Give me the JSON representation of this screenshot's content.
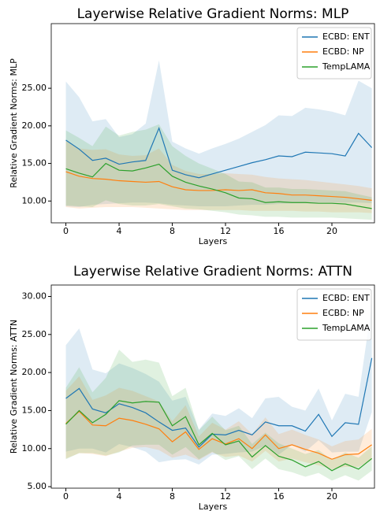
{
  "chart_data": [
    {
      "type": "line",
      "title": "Layerwise Relative Gradient Norms: MLP",
      "x_label": "Layers",
      "y_label": "Relative Gradient Norms: MLP",
      "legend": "upper right",
      "x": [
        0,
        1,
        2,
        3,
        4,
        5,
        6,
        7,
        8,
        9,
        10,
        11,
        12,
        13,
        14,
        15,
        16,
        17,
        18,
        19,
        20,
        21,
        22,
        23
      ],
      "xlim": [
        -1.1,
        23.2
      ],
      "xticks": [
        0,
        4,
        8,
        12,
        16,
        20
      ],
      "ylim": [
        7.1,
        33.6
      ],
      "yticks": [
        {
          "value": 10,
          "label": "10.00"
        },
        {
          "value": 15,
          "label": "15.00"
        },
        {
          "value": 20,
          "label": "20.00"
        },
        {
          "value": 25,
          "label": "25.00"
        }
      ],
      "series": [
        {
          "name": "ECBD: ENT",
          "color": "#1f77b4",
          "values": [
            18.1,
            16.9,
            15.4,
            15.7,
            14.9,
            15.2,
            15.4,
            19.7,
            14.1,
            13.5,
            13.1,
            13.6,
            14.1,
            14.6,
            15.1,
            15.5,
            16.0,
            15.9,
            16.5,
            16.4,
            16.3,
            16.0,
            19.0,
            17.1
          ],
          "upper": [
            25.9,
            23.8,
            20.6,
            20.9,
            18.5,
            18.9,
            20.3,
            28.7,
            17.9,
            17.0,
            16.3,
            17.0,
            17.6,
            18.3,
            19.2,
            20.1,
            21.4,
            21.3,
            22.4,
            22.2,
            21.9,
            21.4,
            26.0,
            25.0
          ],
          "lower": [
            9.3,
            9.2,
            9.5,
            9.6,
            9.7,
            9.8,
            9.8,
            9.7,
            9.5,
            9.4,
            9.3,
            9.3,
            9.3,
            9.4,
            9.5,
            9.5,
            9.6,
            9.7,
            9.7,
            9.8,
            9.8,
            9.8,
            9.8,
            9.7
          ]
        },
        {
          "name": "ECBD: NP",
          "color": "#ff7f0e",
          "values": [
            13.9,
            13.3,
            13.0,
            12.9,
            12.7,
            12.6,
            12.5,
            12.6,
            11.9,
            11.5,
            11.4,
            11.4,
            11.5,
            11.4,
            11.5,
            11.1,
            11.0,
            10.8,
            10.8,
            10.7,
            10.6,
            10.5,
            10.3,
            10.1
          ],
          "upper": [
            18.0,
            17.0,
            16.8,
            16.9,
            16.2,
            16.0,
            16.1,
            17.0,
            14.8,
            14.0,
            13.6,
            13.6,
            13.7,
            13.6,
            13.5,
            13.2,
            13.0,
            12.9,
            12.8,
            12.6,
            12.4,
            12.2,
            12.0,
            11.7
          ],
          "lower": [
            9.2,
            9.0,
            9.1,
            9.2,
            9.2,
            9.2,
            9.1,
            9.0,
            8.9,
            8.8,
            8.8,
            8.8,
            8.8,
            8.8,
            8.7,
            8.7,
            8.7,
            8.7,
            8.6,
            8.6,
            8.5,
            8.5,
            8.5,
            8.4
          ]
        },
        {
          "name": "TempLAMA",
          "color": "#2ca02c",
          "values": [
            14.3,
            13.7,
            13.2,
            15.0,
            14.1,
            14.0,
            14.4,
            14.9,
            13.3,
            12.5,
            12.0,
            11.6,
            11.1,
            10.4,
            10.3,
            9.8,
            9.9,
            9.8,
            9.8,
            9.7,
            9.7,
            9.6,
            9.3,
            9.0
          ],
          "upper": [
            19.4,
            18.4,
            17.3,
            19.9,
            18.7,
            19.2,
            19.5,
            20.2,
            17.3,
            16.0,
            15.0,
            14.3,
            13.6,
            12.6,
            12.5,
            11.8,
            11.8,
            11.6,
            11.6,
            11.5,
            11.4,
            11.3,
            10.9,
            10.5
          ],
          "lower": [
            9.4,
            9.3,
            9.2,
            10.1,
            9.6,
            9.4,
            9.4,
            9.6,
            9.3,
            9.0,
            8.9,
            8.7,
            8.5,
            8.2,
            8.1,
            7.9,
            7.9,
            7.8,
            7.8,
            7.8,
            7.8,
            7.7,
            7.6,
            7.5
          ]
        }
      ]
    },
    {
      "type": "line",
      "title": "Layerwise Relative Gradient Norms: ATTN",
      "x_label": "Layers",
      "y_label": "Relative Gradient Norms: ATTN",
      "legend": "upper right",
      "x": [
        0,
        1,
        2,
        3,
        4,
        5,
        6,
        7,
        8,
        9,
        10,
        11,
        12,
        13,
        14,
        15,
        16,
        17,
        18,
        19,
        20,
        21,
        22,
        23
      ],
      "xlim": [
        -1.1,
        23.2
      ],
      "xticks": [
        0,
        4,
        8,
        12,
        16,
        20
      ],
      "ylim": [
        4.8,
        31.5
      ],
      "yticks": [
        {
          "value": 5,
          "label": "5.00"
        },
        {
          "value": 10,
          "label": "10.00"
        },
        {
          "value": 15,
          "label": "15.00"
        },
        {
          "value": 20,
          "label": "20.00"
        },
        {
          "value": 25,
          "label": "25.00"
        },
        {
          "value": 30,
          "label": "30.00"
        }
      ],
      "series": [
        {
          "name": "ECBD: ENT",
          "color": "#1f77b4",
          "values": [
            16.6,
            17.9,
            15.2,
            14.7,
            15.9,
            15.4,
            14.7,
            13.5,
            12.4,
            12.7,
            10.2,
            11.9,
            11.8,
            12.4,
            11.8,
            13.5,
            13.0,
            13.0,
            12.3,
            14.5,
            11.6,
            13.4,
            13.2,
            21.9
          ],
          "upper": [
            23.6,
            25.8,
            20.4,
            19.9,
            21.2,
            20.6,
            19.8,
            18.8,
            16.3,
            16.8,
            12.5,
            14.6,
            14.3,
            15.3,
            14.0,
            16.6,
            16.8,
            15.5,
            15.0,
            17.9,
            13.7,
            17.2,
            16.8,
            29.0
          ],
          "lower": [
            9.6,
            10.0,
            10.0,
            9.5,
            10.6,
            10.2,
            9.6,
            8.2,
            8.5,
            8.6,
            7.9,
            9.2,
            9.3,
            9.5,
            9.6,
            10.4,
            9.2,
            10.5,
            9.6,
            11.1,
            9.5,
            9.6,
            9.6,
            14.8
          ]
        },
        {
          "name": "ECBD: NP",
          "color": "#ff7f0e",
          "values": [
            13.3,
            14.9,
            13.1,
            13.0,
            14.0,
            13.7,
            13.2,
            12.6,
            10.9,
            12.2,
            9.9,
            11.3,
            10.6,
            11.3,
            10.0,
            11.8,
            10.0,
            10.5,
            9.9,
            9.4,
            8.6,
            9.2,
            9.3,
            10.5
          ],
          "upper": [
            17.6,
            19.5,
            16.4,
            17.0,
            18.0,
            17.6,
            16.9,
            16.2,
            13.6,
            15.7,
            11.6,
            13.4,
            12.5,
            13.6,
            11.9,
            14.1,
            11.9,
            12.5,
            11.8,
            11.2,
            10.3,
            11.0,
            11.2,
            12.6
          ],
          "lower": [
            8.7,
            9.4,
            9.3,
            9.0,
            9.6,
            10.1,
            10.2,
            9.8,
            8.8,
            9.2,
            8.5,
            9.5,
            8.9,
            9.1,
            8.3,
            9.7,
            8.3,
            8.7,
            8.2,
            7.8,
            7.3,
            7.6,
            7.6,
            8.5
          ]
        },
        {
          "name": "TempLAMA",
          "color": "#2ca02c",
          "values": [
            13.2,
            15.0,
            13.4,
            14.5,
            16.3,
            16.0,
            16.2,
            16.1,
            13.0,
            14.2,
            10.5,
            12.0,
            10.5,
            11.0,
            8.9,
            10.4,
            9.0,
            8.5,
            7.6,
            8.3,
            7.1,
            8.0,
            7.3,
            8.7
          ],
          "upper": [
            18.0,
            20.7,
            17.4,
            19.3,
            23.0,
            21.4,
            21.7,
            21.3,
            16.9,
            18.0,
            12.4,
            14.2,
            12.4,
            13.0,
            10.6,
            12.1,
            10.7,
            10.0,
            9.3,
            9.8,
            8.5,
            9.5,
            8.8,
            10.3
          ],
          "lower": [
            8.6,
            9.4,
            9.4,
            9.1,
            9.5,
            10.4,
            10.5,
            10.5,
            9.2,
            10.2,
            8.6,
            9.6,
            8.5,
            9.0,
            7.3,
            8.7,
            7.3,
            6.9,
            6.3,
            6.8,
            5.8,
            6.5,
            5.8,
            7.1
          ]
        }
      ]
    }
  ]
}
